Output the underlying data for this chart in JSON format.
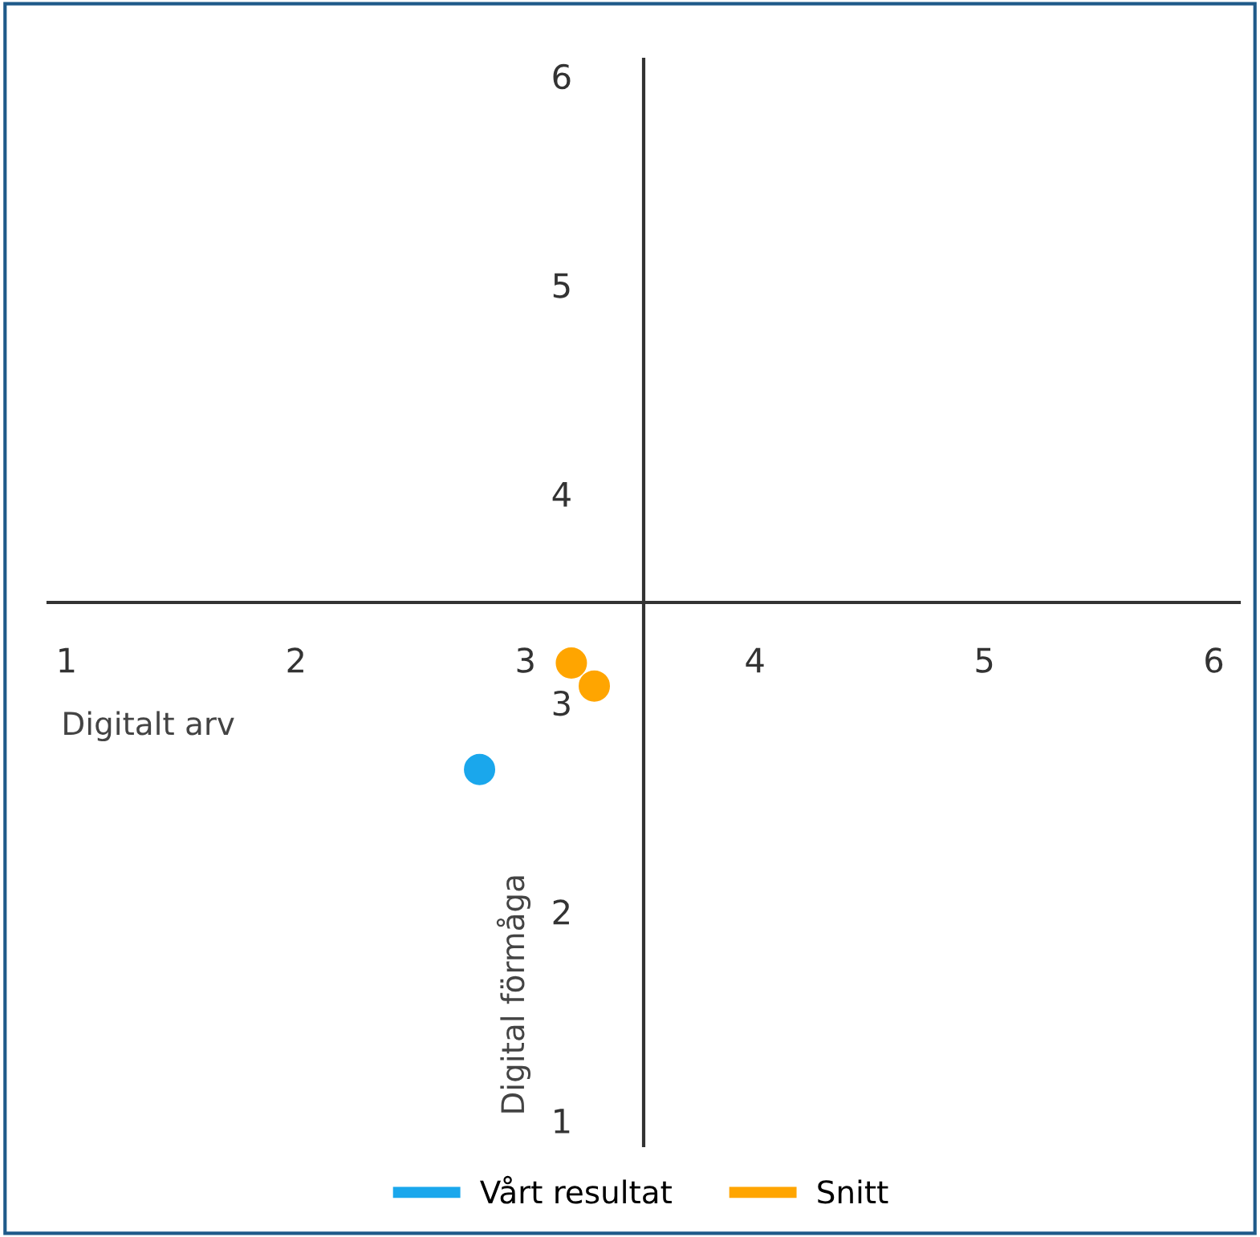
{
  "chart_data": {
    "type": "scatter",
    "xlabel": "Digitalt arv",
    "ylabel": "Digital förmåga",
    "xlim": [
      0.92,
      6.11
    ],
    "ylim": [
      0.88,
      6.08
    ],
    "xticks": [
      1,
      2,
      3,
      4,
      5,
      6
    ],
    "yticks": [
      1,
      2,
      3,
      4,
      5,
      6
    ],
    "series": [
      {
        "name": "Vårt resultat",
        "color": "#1aa7ec",
        "x": [
          2.8
        ],
        "values": [
          2.68
        ]
      },
      {
        "name": "Snitt",
        "color": "#ffa500",
        "x": [
          3.2,
          3.3
        ],
        "values": [
          3.19,
          3.08
        ]
      }
    ],
    "marker": "circle",
    "grid": false,
    "legend": "bottom"
  }
}
